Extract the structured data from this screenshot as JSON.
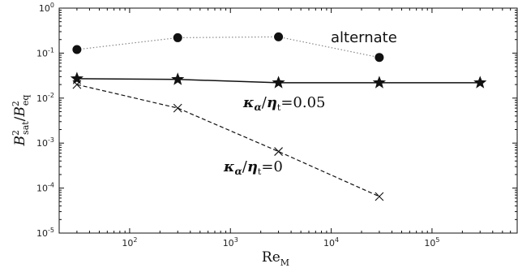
{
  "chart_data": {
    "type": "line",
    "x_scale": "log",
    "y_scale": "log",
    "xlim": [
      20,
      700000
    ],
    "ylim": [
      1e-05,
      1
    ],
    "grid": false,
    "x_ticks": [
      {
        "value": 100,
        "base": "10",
        "exp": "2"
      },
      {
        "value": 1000,
        "base": "10",
        "exp": "3"
      },
      {
        "value": 10000,
        "base": "10",
        "exp": "4"
      },
      {
        "value": 100000,
        "base": "10",
        "exp": "5"
      }
    ],
    "y_ticks": [
      {
        "value": 1,
        "base": "10",
        "exp": "0"
      },
      {
        "value": 0.1,
        "base": "10",
        "exp": "-1"
      },
      {
        "value": 0.01,
        "base": "10",
        "exp": "-2"
      },
      {
        "value": 0.001,
        "base": "10",
        "exp": "-3"
      },
      {
        "value": 0.0001,
        "base": "10",
        "exp": "-4"
      },
      {
        "value": 1e-05,
        "base": "10",
        "exp": "-5"
      }
    ],
    "xlabel": {
      "main": "Re",
      "sub": "M"
    },
    "ylabel": {
      "b1": "B",
      "s1": "2",
      "i1": "sat",
      "sl": "/",
      "b2": "B",
      "s2": "2",
      "i2": "eq"
    },
    "series": [
      {
        "name": "alternate",
        "marker": "circle",
        "line": "dotted",
        "color": "#888888",
        "x": [
          30,
          300,
          3000,
          30000
        ],
        "y": [
          0.12,
          0.22,
          0.23,
          0.08
        ]
      },
      {
        "name": "κα/ηt = 0.05",
        "marker": "star",
        "line": "solid",
        "color": "#111111",
        "x": [
          30,
          300,
          3000,
          30000,
          300000
        ],
        "y": [
          0.027,
          0.026,
          0.022,
          0.022,
          0.022
        ]
      },
      {
        "name": "κα/ηt = 0",
        "marker": "x",
        "line": "dashed",
        "color": "#111111",
        "x": [
          30,
          300,
          3000,
          30000
        ],
        "y": [
          0.02,
          0.006,
          0.00065,
          6.5e-05
        ]
      }
    ],
    "annotations": {
      "alternate": "alternate",
      "k005": {
        "kappa": "κ",
        "alpha": "α",
        "slash": "/",
        "eta": "η",
        "t": "t",
        "val": "=0.05"
      },
      "k0": {
        "kappa": "κ",
        "alpha": "α",
        "slash": "/",
        "eta": "η",
        "t": "t",
        "val": "=0"
      }
    }
  }
}
